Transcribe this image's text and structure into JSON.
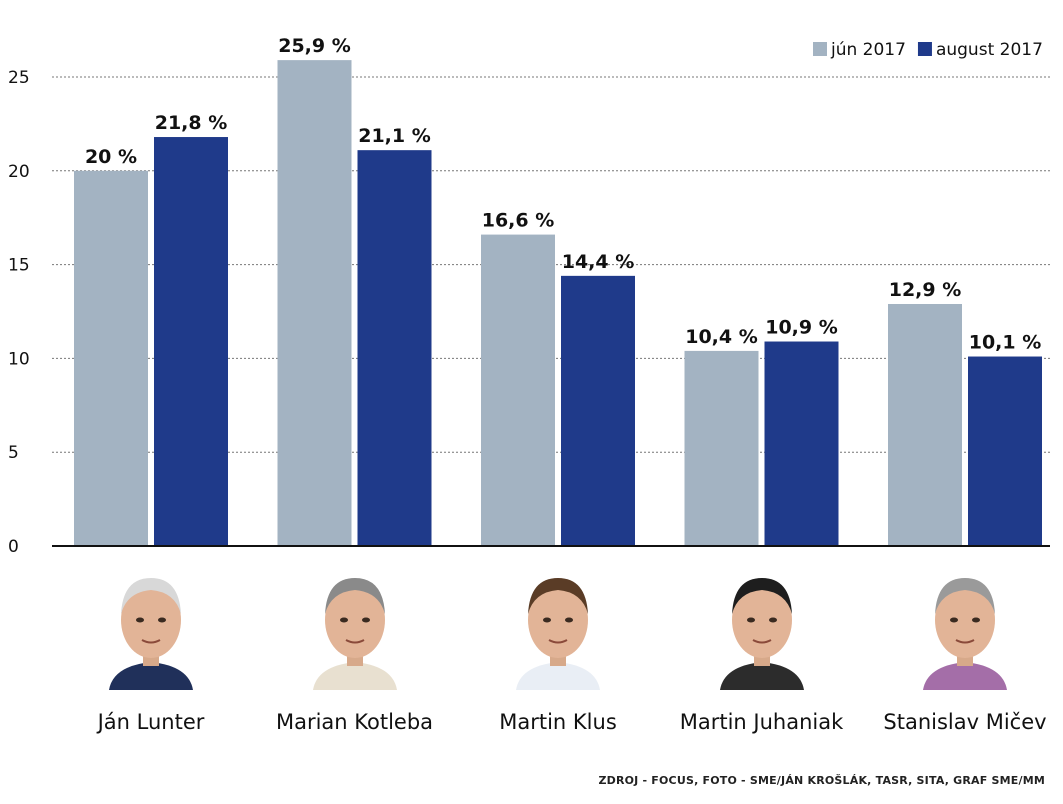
{
  "chart_data": {
    "type": "bar",
    "title": "",
    "xlabel": "",
    "ylabel": "",
    "ylim": [
      0,
      27
    ],
    "yticks": [
      0,
      5,
      10,
      15,
      20,
      25
    ],
    "grid": true,
    "legend_position": "top-right",
    "categories": [
      "Ján Lunter",
      "Marian Kotleba",
      "Martin Klus",
      "Martin Juhaniak",
      "Stanislav Mičev"
    ],
    "series": [
      {
        "name": "jún 2017",
        "color": "#a3b3c2",
        "values": [
          20,
          25.9,
          16.6,
          10.4,
          12.9
        ],
        "labels": [
          "20 %",
          "25,9 %",
          "16,6 %",
          "10,4 %",
          "12,9 %"
        ]
      },
      {
        "name": "august 2017",
        "color": "#1f3a8a",
        "values": [
          21.8,
          21.1,
          14.4,
          10.9,
          10.1
        ],
        "labels": [
          "21,8 %",
          "21,1 %",
          "14,4 %",
          "10,9 %",
          "10,1 %"
        ]
      }
    ]
  },
  "candidates": [
    {
      "name": "Ján Lunter",
      "photo_icon": "portrait-jan-lunter-icon"
    },
    {
      "name": "Marian Kotleba",
      "photo_icon": "portrait-marian-kotleba-icon"
    },
    {
      "name": "Martin Klus",
      "photo_icon": "portrait-martin-klus-icon"
    },
    {
      "name": "Martin Juhaniak",
      "photo_icon": "portrait-martin-juhaniak-icon"
    },
    {
      "name": "Stanislav Mičev",
      "photo_icon": "portrait-stanislav-micev-icon"
    }
  ],
  "source": "ZDROJ - FOCUS, FOTO - SME/JÁN KROŠLÁK, TASR, SITA, GRAF SME/MM"
}
